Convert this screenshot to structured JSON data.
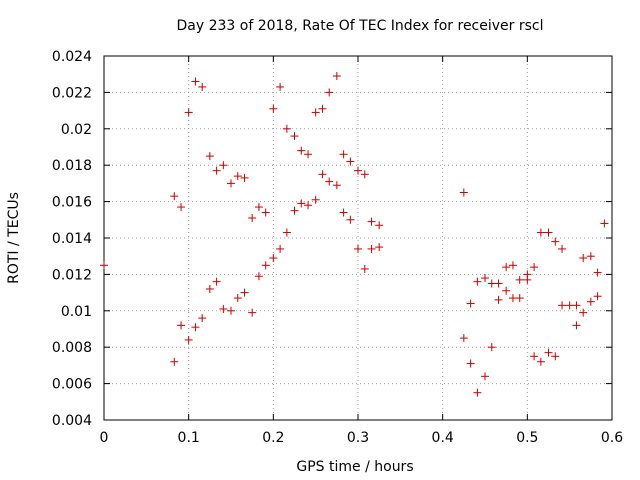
{
  "chart_data": {
    "type": "scatter",
    "title": "Day 233 of 2018, Rate Of TEC Index for receiver rscl",
    "xlabel": "GPS time / hours",
    "ylabel": "ROTI / TECUs",
    "xlim": [
      0,
      0.6
    ],
    "ylim": [
      0.004,
      0.024
    ],
    "xticks": [
      "0",
      "0.1",
      "0.2",
      "0.3",
      "0.4",
      "0.5",
      "0.6"
    ],
    "yticks": [
      "0.004",
      "0.006",
      "0.008",
      "0.01",
      "0.012",
      "0.014",
      "0.016",
      "0.018",
      "0.02",
      "0.022",
      "0.024"
    ],
    "grid": true,
    "series_color": "#cc0000",
    "series": [
      {
        "points": [
          [
            0.0,
            0.0125
          ],
          [
            0.083,
            0.0163
          ],
          [
            0.083,
            0.0072
          ],
          [
            0.091,
            0.0157
          ],
          [
            0.091,
            0.0092
          ],
          [
            0.1,
            0.0209
          ],
          [
            0.1,
            0.0084
          ],
          [
            0.108,
            0.0226
          ],
          [
            0.108,
            0.0091
          ],
          [
            0.116,
            0.0223
          ],
          [
            0.116,
            0.0096
          ],
          [
            0.125,
            0.0185
          ],
          [
            0.125,
            0.0112
          ],
          [
            0.133,
            0.0177
          ],
          [
            0.133,
            0.0116
          ],
          [
            0.141,
            0.018
          ],
          [
            0.141,
            0.0101
          ],
          [
            0.15,
            0.017
          ],
          [
            0.15,
            0.01
          ],
          [
            0.158,
            0.0174
          ],
          [
            0.158,
            0.0107
          ],
          [
            0.166,
            0.0173
          ],
          [
            0.166,
            0.011
          ],
          [
            0.175,
            0.0151
          ],
          [
            0.175,
            0.0099
          ],
          [
            0.183,
            0.0157
          ],
          [
            0.183,
            0.0119
          ],
          [
            0.191,
            0.0154
          ],
          [
            0.191,
            0.0125
          ],
          [
            0.2,
            0.0211
          ],
          [
            0.2,
            0.0129
          ],
          [
            0.208,
            0.0223
          ],
          [
            0.208,
            0.0134
          ],
          [
            0.216,
            0.02
          ],
          [
            0.216,
            0.0143
          ],
          [
            0.225,
            0.0196
          ],
          [
            0.225,
            0.0155
          ],
          [
            0.233,
            0.0188
          ],
          [
            0.233,
            0.0159
          ],
          [
            0.241,
            0.0186
          ],
          [
            0.241,
            0.0158
          ],
          [
            0.25,
            0.0209
          ],
          [
            0.25,
            0.0161
          ],
          [
            0.258,
            0.0211
          ],
          [
            0.258,
            0.0175
          ],
          [
            0.266,
            0.022
          ],
          [
            0.266,
            0.0171
          ],
          [
            0.275,
            0.0229
          ],
          [
            0.275,
            0.0169
          ],
          [
            0.283,
            0.0186
          ],
          [
            0.283,
            0.0154
          ],
          [
            0.291,
            0.0182
          ],
          [
            0.291,
            0.015
          ],
          [
            0.3,
            0.0177
          ],
          [
            0.3,
            0.0134
          ],
          [
            0.308,
            0.0175
          ],
          [
            0.308,
            0.0123
          ],
          [
            0.316,
            0.0149
          ],
          [
            0.316,
            0.0134
          ],
          [
            0.325,
            0.0147
          ],
          [
            0.325,
            0.0135
          ],
          [
            0.425,
            0.0165
          ],
          [
            0.425,
            0.0085
          ],
          [
            0.433,
            0.0104
          ],
          [
            0.433,
            0.0071
          ],
          [
            0.441,
            0.0116
          ],
          [
            0.441,
            0.0055
          ],
          [
            0.45,
            0.0118
          ],
          [
            0.45,
            0.0064
          ],
          [
            0.458,
            0.0115
          ],
          [
            0.458,
            0.008
          ],
          [
            0.466,
            0.0115
          ],
          [
            0.466,
            0.0106
          ],
          [
            0.475,
            0.0124
          ],
          [
            0.475,
            0.0111
          ],
          [
            0.483,
            0.0125
          ],
          [
            0.483,
            0.0107
          ],
          [
            0.491,
            0.0117
          ],
          [
            0.491,
            0.0107
          ],
          [
            0.5,
            0.012
          ],
          [
            0.5,
            0.0117
          ],
          [
            0.508,
            0.0124
          ],
          [
            0.508,
            0.0075
          ],
          [
            0.516,
            0.0143
          ],
          [
            0.516,
            0.0072
          ],
          [
            0.525,
            0.0143
          ],
          [
            0.525,
            0.0077
          ],
          [
            0.533,
            0.0138
          ],
          [
            0.533,
            0.0075
          ],
          [
            0.541,
            0.0134
          ],
          [
            0.541,
            0.0103
          ],
          [
            0.55,
            0.0103
          ],
          [
            0.558,
            0.0103
          ],
          [
            0.558,
            0.0092
          ],
          [
            0.566,
            0.0129
          ],
          [
            0.566,
            0.0099
          ],
          [
            0.575,
            0.013
          ],
          [
            0.575,
            0.0105
          ],
          [
            0.583,
            0.0121
          ],
          [
            0.583,
            0.0108
          ],
          [
            0.591,
            0.0148
          ]
        ]
      }
    ]
  }
}
